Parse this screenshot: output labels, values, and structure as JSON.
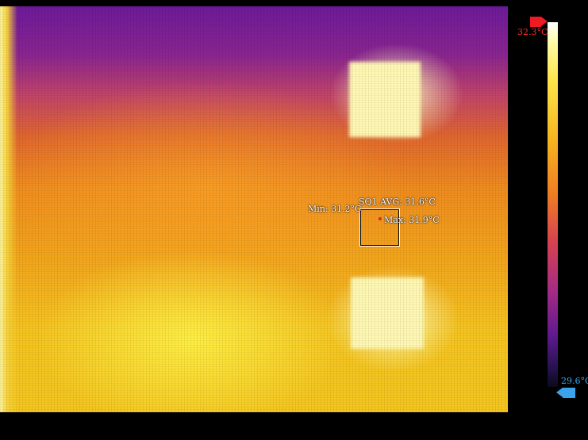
{
  "measurement": {
    "roi_label": "SQ1 AVG: 31.6°C",
    "min_label": "Min: 31.2°C",
    "max_label": "Max: 31.9°C"
  },
  "scale": {
    "max_value": "32.3°C",
    "min_value": "29.6°C",
    "max_color": "#ee1b24",
    "min_color": "#3aa3ec",
    "palette": "iron"
  }
}
